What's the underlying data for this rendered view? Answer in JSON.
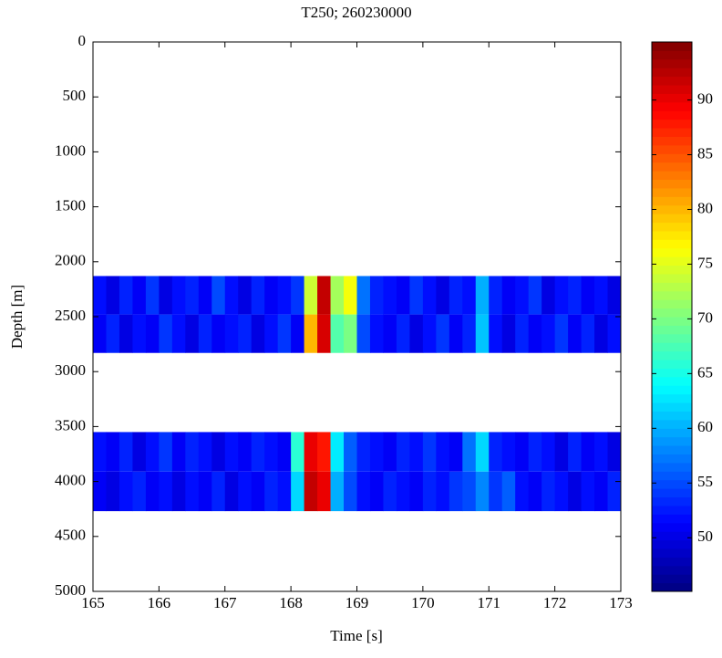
{
  "chart_data": {
    "type": "heatmap",
    "title": "T250; 260230000",
    "x_label": "Time [s]",
    "y_label": "Depth [m]",
    "xlim": [
      165,
      173
    ],
    "xticks": [
      165,
      166,
      167,
      168,
      169,
      170,
      171,
      172,
      173
    ],
    "ylim": [
      0,
      5000
    ],
    "yticks": [
      0,
      500,
      1000,
      1500,
      2000,
      2500,
      3000,
      3500,
      4000,
      4500,
      5000
    ],
    "y_inverted": true,
    "colormap": "jet",
    "clim": [
      45.1,
      95.3
    ],
    "cticks": [
      50,
      55,
      60,
      65,
      70,
      75,
      80,
      85,
      90
    ],
    "xbins": [
      165,
      165.2,
      165.4,
      165.6,
      165.8,
      166,
      166.2,
      166.4,
      166.6,
      166.8,
      167,
      167.2,
      167.4,
      167.6,
      167.8,
      168,
      168.2,
      168.4,
      168.6,
      168.8,
      169,
      169.2,
      169.4,
      169.6,
      169.8,
      170,
      170.2,
      170.4,
      170.6,
      170.8,
      171,
      171.2,
      171.4,
      171.6,
      171.8,
      172,
      172.2,
      172.4,
      172.6,
      172.8,
      173
    ],
    "bands": [
      {
        "ybins": [
          2130,
          2480,
          2830
        ],
        "values": [
          [
            52,
            50,
            53,
            51,
            54,
            50,
            52,
            53,
            51,
            55,
            52,
            50,
            53,
            51,
            52,
            54,
            74,
            92,
            72,
            76,
            57,
            53,
            52,
            51,
            54,
            52,
            50,
            53,
            52,
            60,
            53,
            51,
            52,
            54,
            50,
            52,
            53,
            51,
            52,
            50
          ],
          [
            51,
            53,
            50,
            52,
            51,
            54,
            52,
            50,
            53,
            51,
            52,
            53,
            50,
            52,
            54,
            51,
            80,
            91,
            68,
            70,
            55,
            52,
            51,
            53,
            50,
            52,
            54,
            51,
            53,
            61,
            52,
            50,
            53,
            51,
            52,
            54,
            51,
            53,
            50,
            52
          ]
        ]
      },
      {
        "ybins": [
          3550,
          3910,
          4270
        ],
        "values": [
          [
            52,
            51,
            53,
            50,
            52,
            54,
            51,
            53,
            52,
            50,
            52,
            51,
            53,
            52,
            51,
            66,
            90,
            88,
            63,
            56,
            53,
            52,
            51,
            53,
            52,
            54,
            52,
            51,
            57,
            62,
            53,
            52,
            51,
            53,
            52,
            50,
            53,
            51,
            52,
            50
          ],
          [
            51,
            50,
            52,
            53,
            51,
            52,
            50,
            52,
            51,
            53,
            50,
            52,
            51,
            53,
            52,
            62,
            92,
            90,
            60,
            55,
            52,
            51,
            53,
            52,
            51,
            53,
            52,
            54,
            55,
            58,
            54,
            56,
            52,
            51,
            53,
            52,
            50,
            52,
            51,
            53
          ]
        ]
      }
    ]
  }
}
